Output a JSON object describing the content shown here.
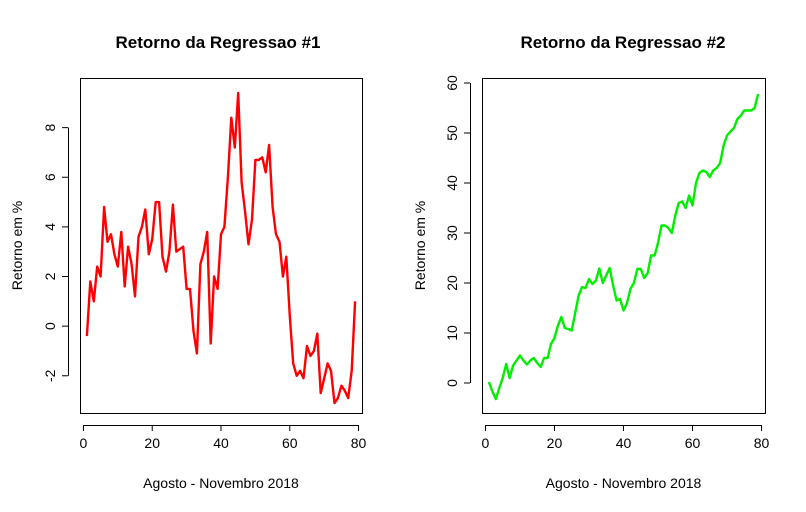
{
  "chart_data": [
    {
      "type": "line",
      "title": "Retorno da Regressao #1",
      "xlabel": "Agosto - Novembro 2018",
      "ylabel": "Retorno em %",
      "xlim": [
        -1,
        81
      ],
      "ylim": [
        -3.5,
        10
      ],
      "xticks": [
        0,
        20,
        40,
        60,
        80
      ],
      "yticks": [
        -2,
        0,
        2,
        4,
        6,
        8
      ],
      "color": "#ff0000",
      "series": [
        {
          "x": [
            1,
            2,
            3,
            4,
            5,
            6,
            7,
            8,
            9,
            10,
            11,
            12,
            13,
            14,
            15,
            16,
            17,
            18,
            19,
            20,
            21,
            22,
            23,
            24,
            25,
            26,
            27,
            28,
            29,
            30,
            31,
            32,
            33,
            34,
            35,
            36,
            37,
            38,
            39,
            40,
            41,
            42,
            43,
            44,
            45,
            46,
            47,
            48,
            49,
            50,
            51,
            52,
            53,
            54,
            55,
            56,
            57,
            58,
            59,
            60,
            61,
            62,
            63,
            64,
            65,
            66,
            67,
            68,
            69,
            70,
            71,
            72,
            73,
            74,
            75,
            76,
            77,
            78,
            79
          ],
          "y": [
            -0.4,
            1.8,
            1.0,
            2.4,
            2.0,
            4.8,
            3.4,
            3.7,
            2.9,
            2.4,
            3.8,
            1.6,
            3.2,
            2.5,
            1.2,
            3.6,
            4.0,
            4.7,
            2.9,
            3.5,
            5.0,
            5.0,
            2.8,
            2.2,
            3.0,
            4.9,
            3.0,
            3.1,
            3.2,
            1.5,
            1.5,
            -0.2,
            -1.1,
            2.5,
            3.0,
            3.8,
            -0.7,
            2.0,
            1.5,
            3.7,
            4.0,
            6.0,
            8.4,
            7.2,
            9.4,
            5.8,
            4.6,
            3.3,
            4.3,
            6.7,
            6.7,
            6.8,
            6.2,
            7.3,
            4.8,
            3.7,
            3.4,
            2.0,
            2.8,
            0.4,
            -1.5,
            -2.0,
            -1.8,
            -2.1,
            -0.8,
            -1.2,
            -1.0,
            -0.3,
            -2.7,
            -2.1,
            -1.5,
            -1.8,
            -3.1,
            -2.9,
            -2.4,
            -2.6,
            -2.9,
            -1.8,
            1.0
          ]
        }
      ]
    },
    {
      "type": "line",
      "title": "Retorno da Regressao #2",
      "xlabel": "Agosto - Novembro 2018",
      "ylabel": "Retorno em %",
      "xlim": [
        -1,
        81
      ],
      "ylim": [
        -6,
        61
      ],
      "xticks": [
        0,
        20,
        40,
        60,
        80
      ],
      "yticks": [
        0,
        10,
        20,
        30,
        40,
        50,
        60
      ],
      "color": "#00ee00",
      "series": [
        {
          "x": [
            1,
            2,
            3,
            4,
            5,
            6,
            7,
            8,
            9,
            10,
            11,
            12,
            13,
            14,
            15,
            16,
            17,
            18,
            19,
            20,
            21,
            22,
            23,
            24,
            25,
            26,
            27,
            28,
            29,
            30,
            31,
            32,
            33,
            34,
            35,
            36,
            37,
            38,
            39,
            40,
            41,
            42,
            43,
            44,
            45,
            46,
            47,
            48,
            49,
            50,
            51,
            52,
            53,
            54,
            55,
            56,
            57,
            58,
            59,
            60,
            61,
            62,
            63,
            64,
            65,
            66,
            67,
            68,
            69,
            70,
            71,
            72,
            73,
            74,
            75,
            76,
            77,
            78,
            79
          ],
          "y": [
            0.2,
            -1.7,
            -3.2,
            -1.0,
            1.0,
            3.8,
            1.0,
            3.5,
            4.5,
            5.5,
            4.5,
            3.7,
            4.5,
            5.0,
            4.0,
            3.2,
            5.0,
            5.0,
            7.8,
            9.0,
            11.5,
            13.2,
            11.0,
            10.8,
            10.5,
            14.0,
            17.5,
            19.2,
            19.0,
            20.8,
            19.8,
            20.5,
            22.9,
            20.0,
            21.5,
            23.0,
            19.5,
            16.5,
            16.8,
            14.5,
            16.0,
            18.8,
            20.0,
            22.8,
            22.8,
            21.0,
            22.0,
            25.5,
            25.5,
            28.0,
            31.5,
            31.5,
            31.0,
            30.0,
            33.5,
            36.0,
            36.3,
            35.0,
            37.5,
            35.5,
            40.0,
            42.0,
            42.5,
            42.2,
            41.2,
            42.5,
            43.0,
            44.0,
            47.5,
            49.5,
            50.3,
            51.0,
            52.8,
            53.5,
            54.5,
            54.5,
            54.5,
            55.0,
            57.8
          ]
        }
      ]
    }
  ]
}
